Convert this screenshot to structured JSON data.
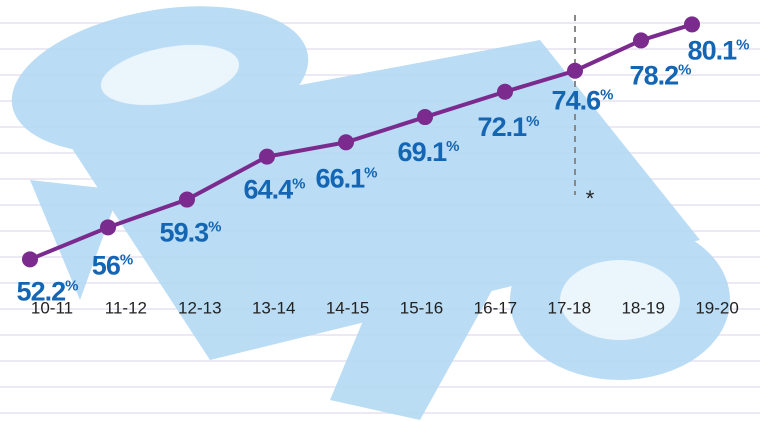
{
  "chart_data": {
    "type": "line",
    "categories": [
      "10-11",
      "11-12",
      "12-13",
      "13-14",
      "14-15",
      "15-16",
      "16-17",
      "17-18",
      "18-19",
      "19-20"
    ],
    "values": [
      52.2,
      56,
      59.3,
      64.4,
      66.1,
      69.1,
      72.1,
      74.6,
      78.2,
      80.1
    ],
    "value_labels": [
      "52.2%",
      "56%",
      "59.3%",
      "64.4%",
      "66.1%",
      "69.1%",
      "72.1%",
      "74.6%",
      "78.2%",
      "80.1%"
    ],
    "color": "#7b2a8e",
    "ylim": [
      33,
      83
    ],
    "annotation": "*"
  }
}
